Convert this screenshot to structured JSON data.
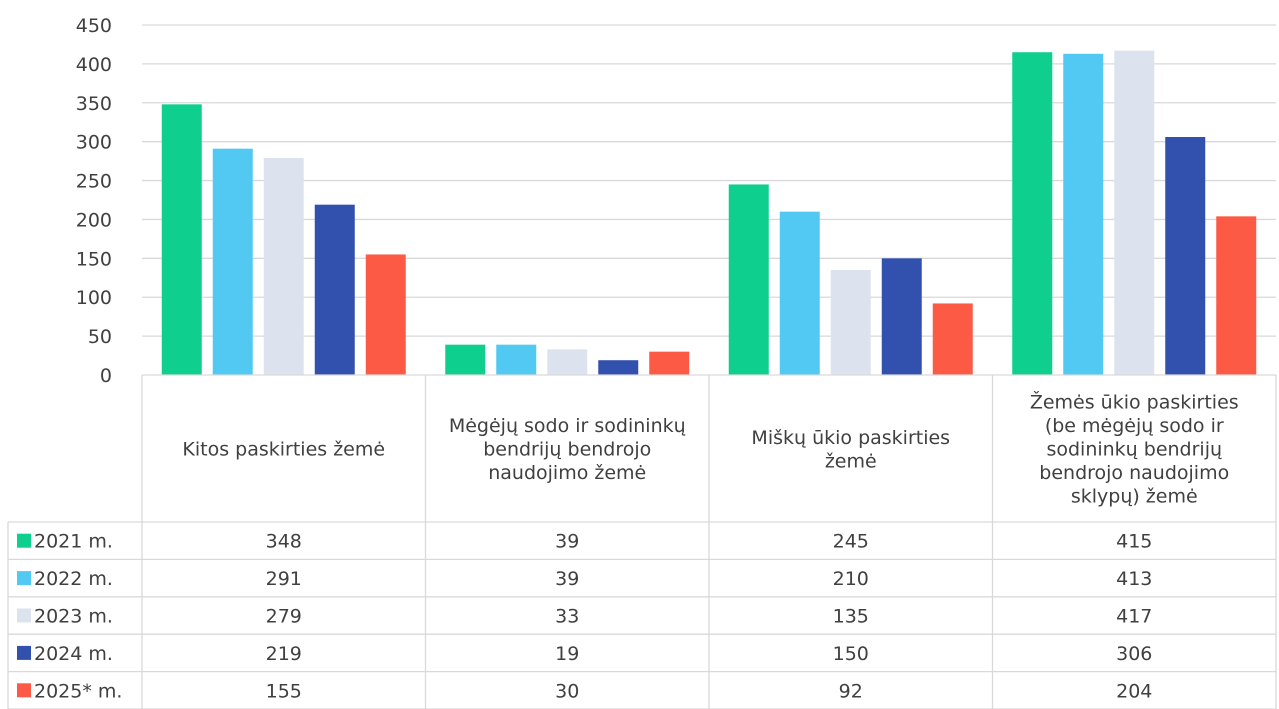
{
  "chart_data": {
    "type": "bar",
    "title": "",
    "xlabel": "",
    "ylabel": "",
    "ylim": [
      0,
      450
    ],
    "yticks": [
      0,
      50,
      100,
      150,
      200,
      250,
      300,
      350,
      400,
      450
    ],
    "ytick_labels": [
      "0",
      "50",
      "100",
      "150",
      "200",
      "250",
      "300",
      "350",
      "400",
      "450"
    ],
    "grid": true,
    "legend": "data-table-left",
    "categories": [
      [
        "Kitos paskirties žemė"
      ],
      [
        "Mėgėjų sodo ir sodininkų",
        "bendrijų bendrojo",
        "naudojimo žemė"
      ],
      [
        "Miškų ūkio paskirties",
        "žemė"
      ],
      [
        "Žemės ūkio paskirties",
        "(be mėgėjų sodo ir",
        "sodininkų bendrijų",
        "bendrojo naudojimo",
        "sklypų) žemė"
      ]
    ],
    "series": [
      {
        "name": "2021 m.",
        "color": "#0fcf8f",
        "values": [
          348,
          39,
          245,
          415
        ]
      },
      {
        "name": "2022 m.",
        "color": "#52c9f2",
        "values": [
          291,
          39,
          210,
          413
        ]
      },
      {
        "name": "2023 m.",
        "color": "#dde3ee",
        "values": [
          279,
          33,
          135,
          417
        ]
      },
      {
        "name": "2024 m.",
        "color": "#3250ad",
        "values": [
          219,
          19,
          150,
          306
        ]
      },
      {
        "name": "2025* m.",
        "color": "#fc5a45",
        "values": [
          155,
          30,
          92,
          204
        ]
      }
    ]
  }
}
